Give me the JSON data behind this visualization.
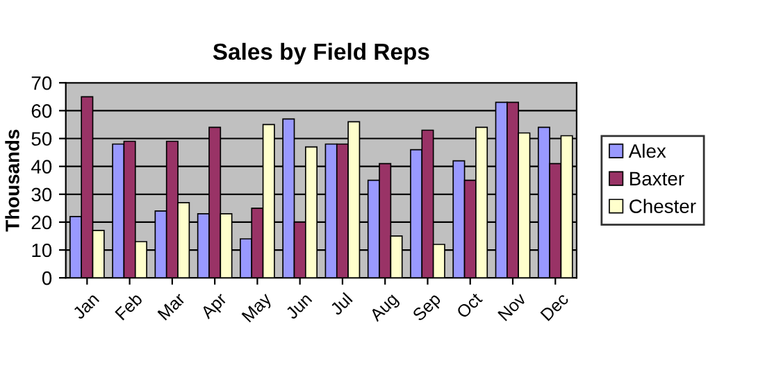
{
  "chart_data": {
    "type": "bar",
    "title": "Sales by Field Reps",
    "ylabel": "Thousands",
    "categories": [
      "Jan",
      "Feb",
      "Mar",
      "Apr",
      "May",
      "Jun",
      "Jul",
      "Aug",
      "Sep",
      "Oct",
      "Nov",
      "Dec"
    ],
    "series": [
      {
        "name": "Alex",
        "color": "#9999ff",
        "values": [
          22,
          48,
          24,
          23,
          14,
          57,
          48,
          35,
          46,
          42,
          63,
          54
        ]
      },
      {
        "name": "Baxter",
        "color": "#993366",
        "values": [
          65,
          49,
          49,
          54,
          25,
          20,
          48,
          41,
          53,
          35,
          63,
          41
        ]
      },
      {
        "name": "Chester",
        "color": "#ffffcc",
        "values": [
          17,
          13,
          27,
          23,
          55,
          47,
          56,
          15,
          12,
          54,
          52,
          51
        ]
      }
    ],
    "ylim": [
      0,
      70
    ],
    "yticks": [
      0,
      10,
      20,
      30,
      40,
      50,
      60,
      70
    ],
    "grid": "y",
    "legend": "right"
  }
}
